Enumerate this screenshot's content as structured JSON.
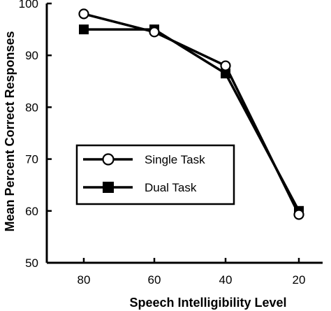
{
  "chart_data": {
    "type": "line",
    "title": "",
    "xlabel": "Speech Intelligibility Level",
    "ylabel": "Mean Percent Correct Responses",
    "categories": [
      "80",
      "60",
      "40",
      "20"
    ],
    "x": [
      80,
      60,
      40,
      20
    ],
    "x_direction": "descending",
    "ylim": [
      50,
      100
    ],
    "yticks": [
      50,
      60,
      70,
      80,
      90,
      100
    ],
    "grid": false,
    "legend_position": "center-left",
    "series": [
      {
        "name": "Single Task",
        "marker": "open-circle",
        "color": "#000000",
        "values": [
          98,
          94.5,
          88,
          59.3
        ]
      },
      {
        "name": "Dual Task",
        "marker": "filled-square",
        "color": "#000000",
        "values": [
          95,
          95,
          86.5,
          60
        ]
      }
    ]
  }
}
